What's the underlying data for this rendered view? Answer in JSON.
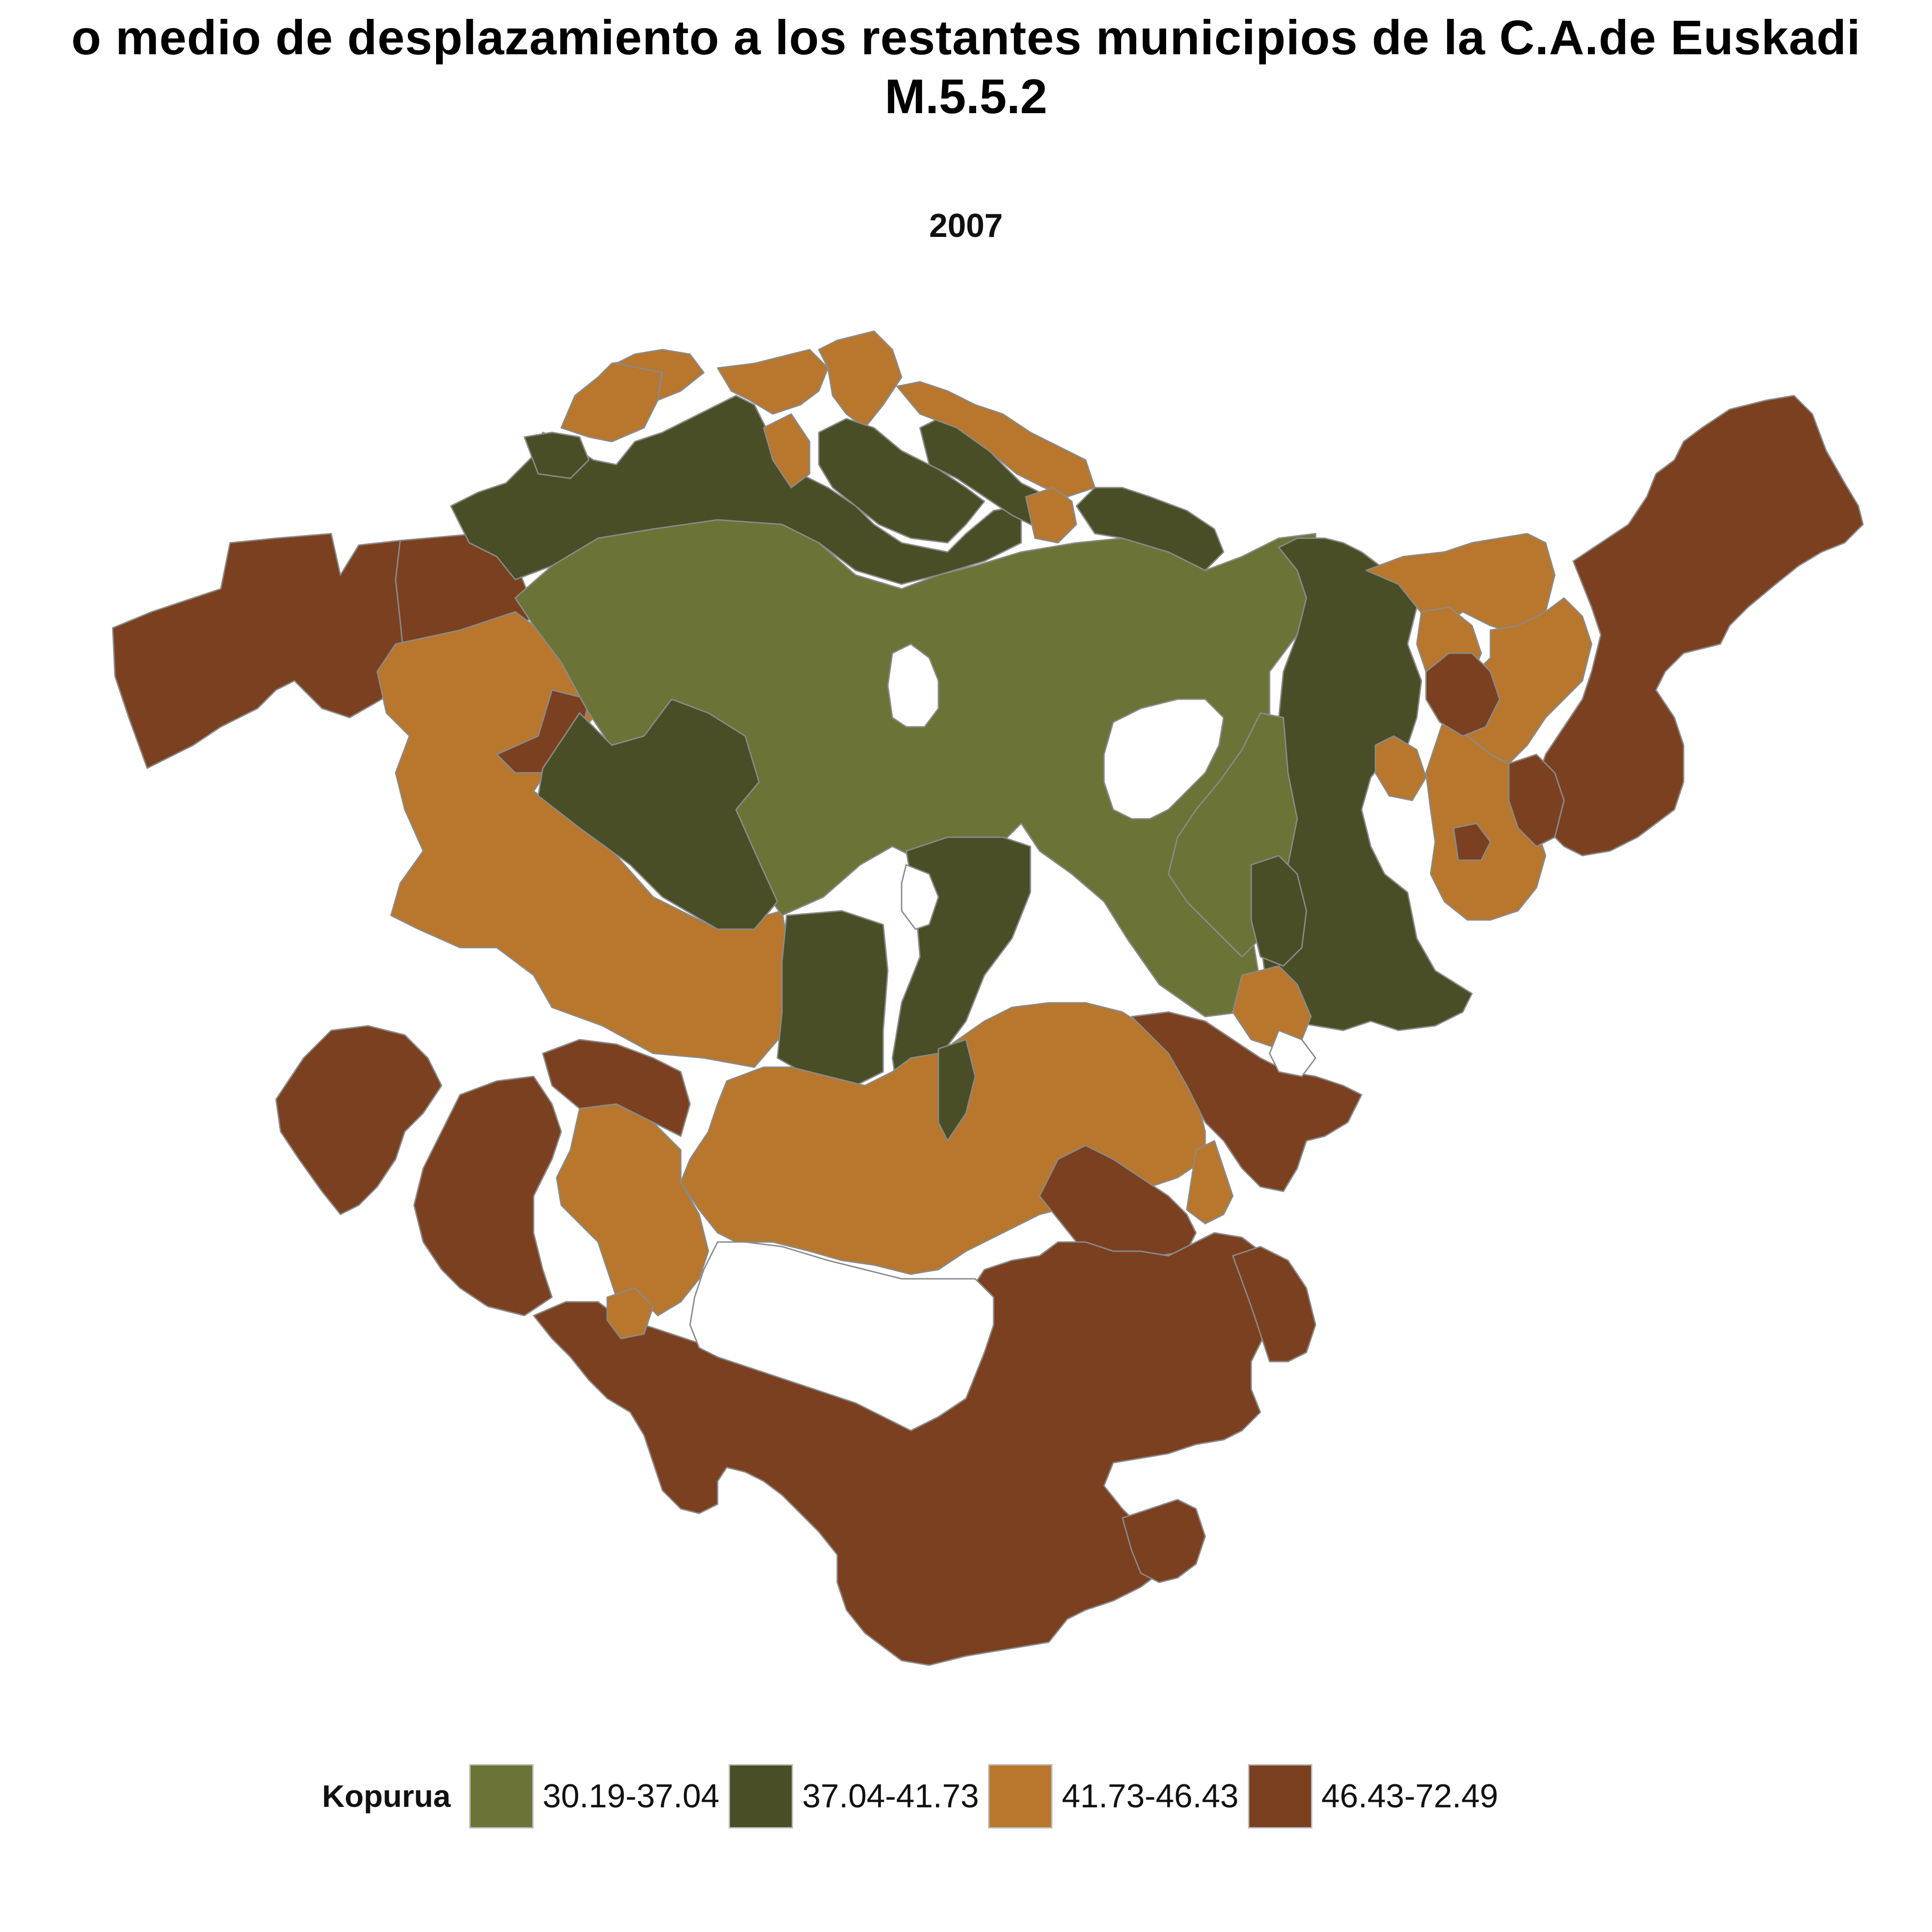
{
  "title": {
    "line1": "o medio de desplazamiento a los restantes municipios de la C.A.de Euskadi",
    "line2": "M.5.5.2"
  },
  "subtitle": "2007",
  "legend": {
    "title": "Kopurua",
    "items": [
      {
        "label": "30.19-37.04",
        "color": "#6b7337"
      },
      {
        "label": "37.04-41.73",
        "color": "#4a4e26"
      },
      {
        "label": "41.73-46.43",
        "color": "#b8772c"
      },
      {
        "label": "46.43-72.49",
        "color": "#7b4020"
      }
    ]
  },
  "map": {
    "border_color": "#8a8a8a",
    "regions": [
      {
        "class": 0,
        "area": "central-green"
      },
      {
        "class": 0,
        "area": "north-central-green"
      },
      {
        "class": 1,
        "area": "north-coast-west"
      },
      {
        "class": 1,
        "area": "north-coast-center"
      },
      {
        "class": 1,
        "area": "central-left"
      },
      {
        "class": 1,
        "area": "central-south"
      },
      {
        "class": 1,
        "area": "east-corridor"
      },
      {
        "class": 2,
        "area": "north-coast-patches"
      },
      {
        "class": 2,
        "area": "west-band"
      },
      {
        "class": 2,
        "area": "south-central"
      },
      {
        "class": 2,
        "area": "east-patches"
      },
      {
        "class": 3,
        "area": "far-west"
      },
      {
        "class": 3,
        "area": "far-east"
      },
      {
        "class": 3,
        "area": "south"
      },
      {
        "class": 3,
        "area": "south-west"
      },
      {
        "class": 3,
        "area": "south-east-strip"
      }
    ]
  }
}
